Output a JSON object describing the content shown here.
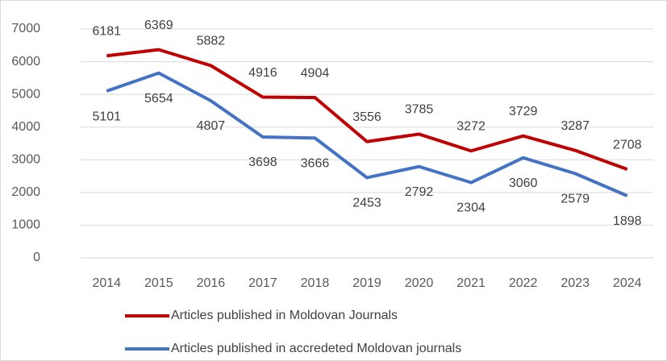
{
  "chart_data": {
    "type": "line",
    "categories": [
      "2014",
      "2015",
      "2016",
      "2017",
      "2018",
      "2019",
      "2020",
      "2021",
      "2022",
      "2023",
      "2024"
    ],
    "series": [
      {
        "name": "Articles published in Moldovan Journals",
        "color": "#c00000",
        "values": [
          6181,
          6369,
          5882,
          4916,
          4904,
          3556,
          3785,
          3272,
          3729,
          3287,
          2708
        ]
      },
      {
        "name": "Articles published in accredeted Moldovan journals",
        "color": "#4472c4",
        "values": [
          5101,
          5654,
          4807,
          3698,
          3666,
          2453,
          2792,
          2304,
          3060,
          2579,
          1898
        ]
      }
    ],
    "ylim": [
      0,
      7000
    ],
    "yticks": [
      0,
      1000,
      2000,
      3000,
      4000,
      5000,
      6000,
      7000
    ],
    "grid": true
  }
}
